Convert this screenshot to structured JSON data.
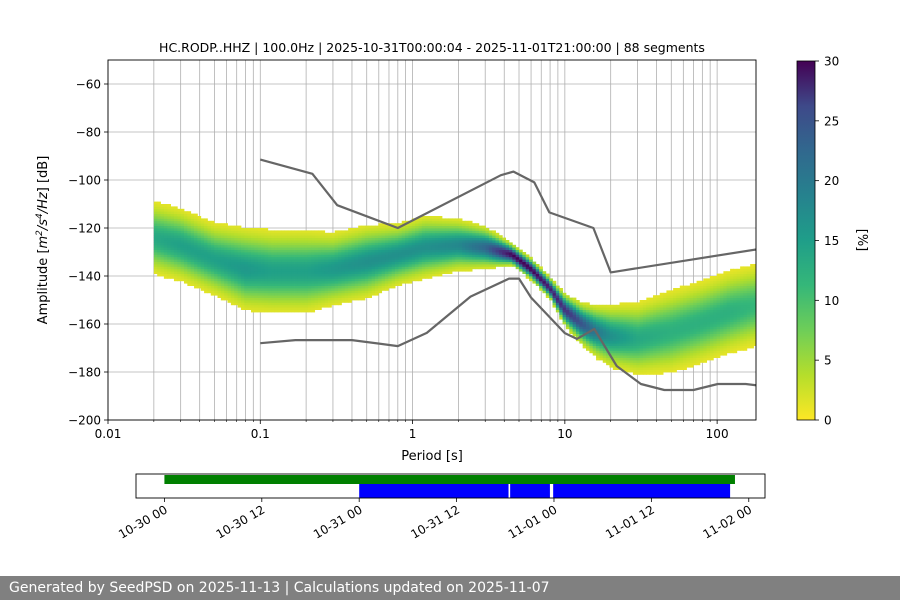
{
  "chart_data": [
    {
      "type": "heatmap",
      "title": "HC.RODP..HHZ | 100.0Hz | 2025-10-31T00:00:04 - 2025-11-01T21:00:00 | 88 segments",
      "xlabel": "Period [s]",
      "ylabel_parts": [
        "Amplitude [",
        "m",
        "2",
        "/s",
        "4",
        "/Hz",
        "] [dB]"
      ],
      "xscale": "log",
      "xlim": [
        0.01,
        180
      ],
      "ylim": [
        -200,
        -50
      ],
      "x_ticks": [
        0.01,
        0.1,
        1,
        10,
        100
      ],
      "x_tick_labels": [
        "0.01",
        "0.1",
        "1",
        "10",
        "100"
      ],
      "y_ticks": [
        -200,
        -180,
        -160,
        -140,
        -120,
        -100,
        -80,
        -60
      ],
      "y_tick_labels": [
        "−200",
        "−180",
        "−160",
        "−140",
        "−120",
        "−100",
        "−80",
        "−60"
      ],
      "grid": true,
      "colormap": "viridis_r",
      "colorbar": {
        "label": "[%]",
        "range": [
          0,
          30
        ],
        "ticks": [
          0,
          5,
          10,
          15,
          20,
          25,
          30
        ],
        "tick_labels": [
          "0",
          "5",
          "10",
          "15",
          "20",
          "25",
          "30"
        ]
      },
      "psd_band": {
        "period": [
          0.02,
          0.03,
          0.05,
          0.08,
          0.12,
          0.2,
          0.3,
          0.5,
          0.8,
          1.2,
          2.0,
          3.0,
          4.5,
          6.0,
          8.0,
          10,
          13,
          16,
          20,
          30,
          50,
          80,
          120,
          180
        ],
        "center_db": [
          -124,
          -127,
          -133,
          -137,
          -138,
          -138,
          -137,
          -134,
          -131,
          -128,
          -127,
          -128,
          -131,
          -137,
          -145,
          -154,
          -160,
          -163,
          -165,
          -166,
          -163,
          -159,
          -155,
          -152
        ],
        "spread_db": [
          7,
          7,
          7,
          8,
          8,
          8,
          7,
          7,
          6,
          6,
          5,
          4,
          2,
          2,
          2,
          3,
          4,
          5,
          6,
          7,
          8,
          8,
          8,
          8
        ],
        "peak_percent": [
          12,
          13,
          13,
          14,
          13,
          13,
          14,
          15,
          15,
          15,
          16,
          20,
          30,
          30,
          28,
          26,
          22,
          18,
          15,
          12,
          11,
          11,
          11,
          10
        ]
      },
      "series": [
        {
          "name": "NHNM",
          "color": "#666666",
          "x": [
            0.1,
            0.22,
            0.32,
            0.8,
            3.8,
            4.6,
            6.3,
            7.9,
            15.4,
            20,
            354
          ],
          "y": [
            -91.5,
            -97.4,
            -110.5,
            -120,
            -98,
            -96.5,
            -101,
            -113.5,
            -120,
            -138.5,
            -126
          ]
        },
        {
          "name": "NLNM",
          "color": "#666666",
          "x": [
            0.1,
            0.17,
            0.4,
            0.8,
            1.24,
            2.4,
            4.3,
            5.0,
            6.0,
            10,
            12,
            15.6,
            21.9,
            31.6,
            45,
            70,
            101,
            154,
            328
          ],
          "y": [
            -168,
            -166.7,
            -166.7,
            -169.2,
            -163.7,
            -148.6,
            -141.1,
            -141.1,
            -149,
            -163.8,
            -166.2,
            -162.1,
            -177.5,
            -185,
            -187.5,
            -187.5,
            -185,
            -185,
            -187.5
          ]
        }
      ]
    },
    {
      "type": "timeline",
      "x_ticks": [
        "10-30 00",
        "10-30 12",
        "10-31 00",
        "10-31 12",
        "11-01 00",
        "11-01 12",
        "11-02 00"
      ],
      "x_tick_hours": [
        0,
        12,
        24,
        36,
        48,
        60,
        72
      ],
      "xlim_hours": [
        -3.5,
        74
      ],
      "data_range_hours": [
        0,
        70.3
      ],
      "data_color": "#008000",
      "segment_color": "#0000ff",
      "segments_hours": [
        [
          24.0,
          42.4
        ],
        [
          42.6,
          47.5
        ],
        [
          47.9,
          69.7
        ]
      ]
    }
  ],
  "footer": {
    "text": "Generated by SeedPSD on 2025-11-13 | Calculations updated on 2025-11-07"
  }
}
